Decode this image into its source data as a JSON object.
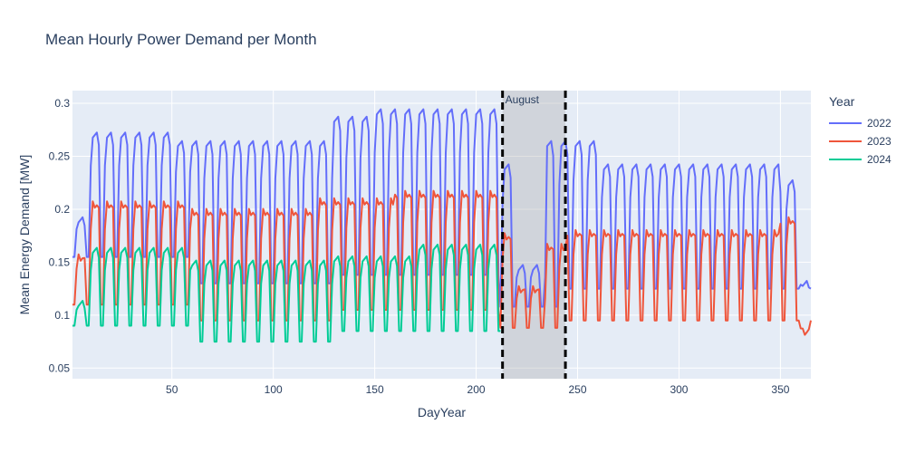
{
  "chart_data": {
    "type": "line",
    "title": "Mean Hourly Power Demand per Month",
    "xlabel": "DayYear",
    "ylabel": "Mean Energy Demand [MW]",
    "xlim": [
      1,
      365
    ],
    "ylim": [
      0.04,
      0.312
    ],
    "x_ticks": [
      50,
      100,
      150,
      200,
      250,
      300,
      350
    ],
    "y_ticks": [
      0.05,
      0.1,
      0.15,
      0.2,
      0.25,
      0.3
    ],
    "y_tick_labels": [
      "0.05",
      "0.1",
      "0.15",
      "0.2",
      "0.25",
      "0.3"
    ],
    "grid": true,
    "legend_title": "Year",
    "legend_position": "right",
    "highlight": {
      "label": "August",
      "x_start": 213,
      "x_end": 244
    },
    "series": [
      {
        "name": "2022",
        "color": "#636efa",
        "period": 7,
        "x_start": 1,
        "x_end": 365,
        "weekday_values": [
          0.14,
          0.21,
          0.212,
          0.21,
          0.21,
          0.21,
          0.16
        ],
        "weekend_values": [
          0.11,
          0.125
        ],
        "segments": [
          {
            "x_start": 1,
            "x_end": 10,
            "value": 0.19
          },
          {
            "x_start": 10,
            "x_end": 50,
            "value": 0.27
          },
          {
            "x_start": 50,
            "x_end": 130,
            "value": 0.262
          },
          {
            "x_start": 130,
            "x_end": 150,
            "value": 0.285
          },
          {
            "x_start": 150,
            "x_end": 212,
            "value": 0.292
          },
          {
            "x_start": 212,
            "x_end": 218,
            "value": 0.24
          },
          {
            "x_start": 218,
            "x_end": 235,
            "value": 0.145
          },
          {
            "x_start": 235,
            "x_end": 245,
            "value": 0.262
          },
          {
            "x_start": 245,
            "x_end": 260,
            "value": 0.262
          },
          {
            "x_start": 260,
            "x_end": 350,
            "value": 0.24
          },
          {
            "x_start": 350,
            "x_end": 358,
            "value": 0.225
          },
          {
            "x_start": 358,
            "x_end": 365,
            "value": 0.13
          }
        ],
        "weekend_segments": [
          {
            "x_start": 1,
            "x_end": 60,
            "value": 0.155
          },
          {
            "x_start": 60,
            "x_end": 130,
            "value": 0.13
          },
          {
            "x_start": 130,
            "x_end": 212,
            "value": 0.138
          },
          {
            "x_start": 212,
            "x_end": 245,
            "value": 0.108
          },
          {
            "x_start": 245,
            "x_end": 365,
            "value": 0.125
          }
        ]
      },
      {
        "name": "2023",
        "color": "#ef553b",
        "period": 7,
        "x_start": 1,
        "x_end": 365,
        "segments": [
          {
            "x_start": 1,
            "x_end": 10,
            "value": 0.155
          },
          {
            "x_start": 10,
            "x_end": 60,
            "value": 0.205
          },
          {
            "x_start": 60,
            "x_end": 120,
            "value": 0.198
          },
          {
            "x_start": 120,
            "x_end": 160,
            "value": 0.208
          },
          {
            "x_start": 160,
            "x_end": 212,
            "value": 0.215
          },
          {
            "x_start": 212,
            "x_end": 218,
            "value": 0.175
          },
          {
            "x_start": 218,
            "x_end": 235,
            "value": 0.125
          },
          {
            "x_start": 235,
            "x_end": 245,
            "value": 0.165
          },
          {
            "x_start": 245,
            "x_end": 350,
            "value": 0.178
          },
          {
            "x_start": 350,
            "x_end": 358,
            "value": 0.19
          },
          {
            "x_start": 358,
            "x_end": 365,
            "value": 0.085
          }
        ],
        "weekend_segments": [
          {
            "x_start": 1,
            "x_end": 60,
            "value": 0.11
          },
          {
            "x_start": 60,
            "x_end": 130,
            "value": 0.095
          },
          {
            "x_start": 130,
            "x_end": 212,
            "value": 0.105
          },
          {
            "x_start": 212,
            "x_end": 245,
            "value": 0.088
          },
          {
            "x_start": 245,
            "x_end": 365,
            "value": 0.095
          }
        ]
      },
      {
        "name": "2024",
        "color": "#00cc96",
        "period": 7,
        "x_start": 1,
        "x_end": 212,
        "segments": [
          {
            "x_start": 1,
            "x_end": 10,
            "value": 0.11
          },
          {
            "x_start": 10,
            "x_end": 60,
            "value": 0.16
          },
          {
            "x_start": 60,
            "x_end": 130,
            "value": 0.148
          },
          {
            "x_start": 130,
            "x_end": 170,
            "value": 0.152
          },
          {
            "x_start": 170,
            "x_end": 212,
            "value": 0.163
          }
        ],
        "weekend_segments": [
          {
            "x_start": 1,
            "x_end": 60,
            "value": 0.09
          },
          {
            "x_start": 60,
            "x_end": 130,
            "value": 0.075
          },
          {
            "x_start": 130,
            "x_end": 212,
            "value": 0.085
          }
        ]
      }
    ]
  }
}
